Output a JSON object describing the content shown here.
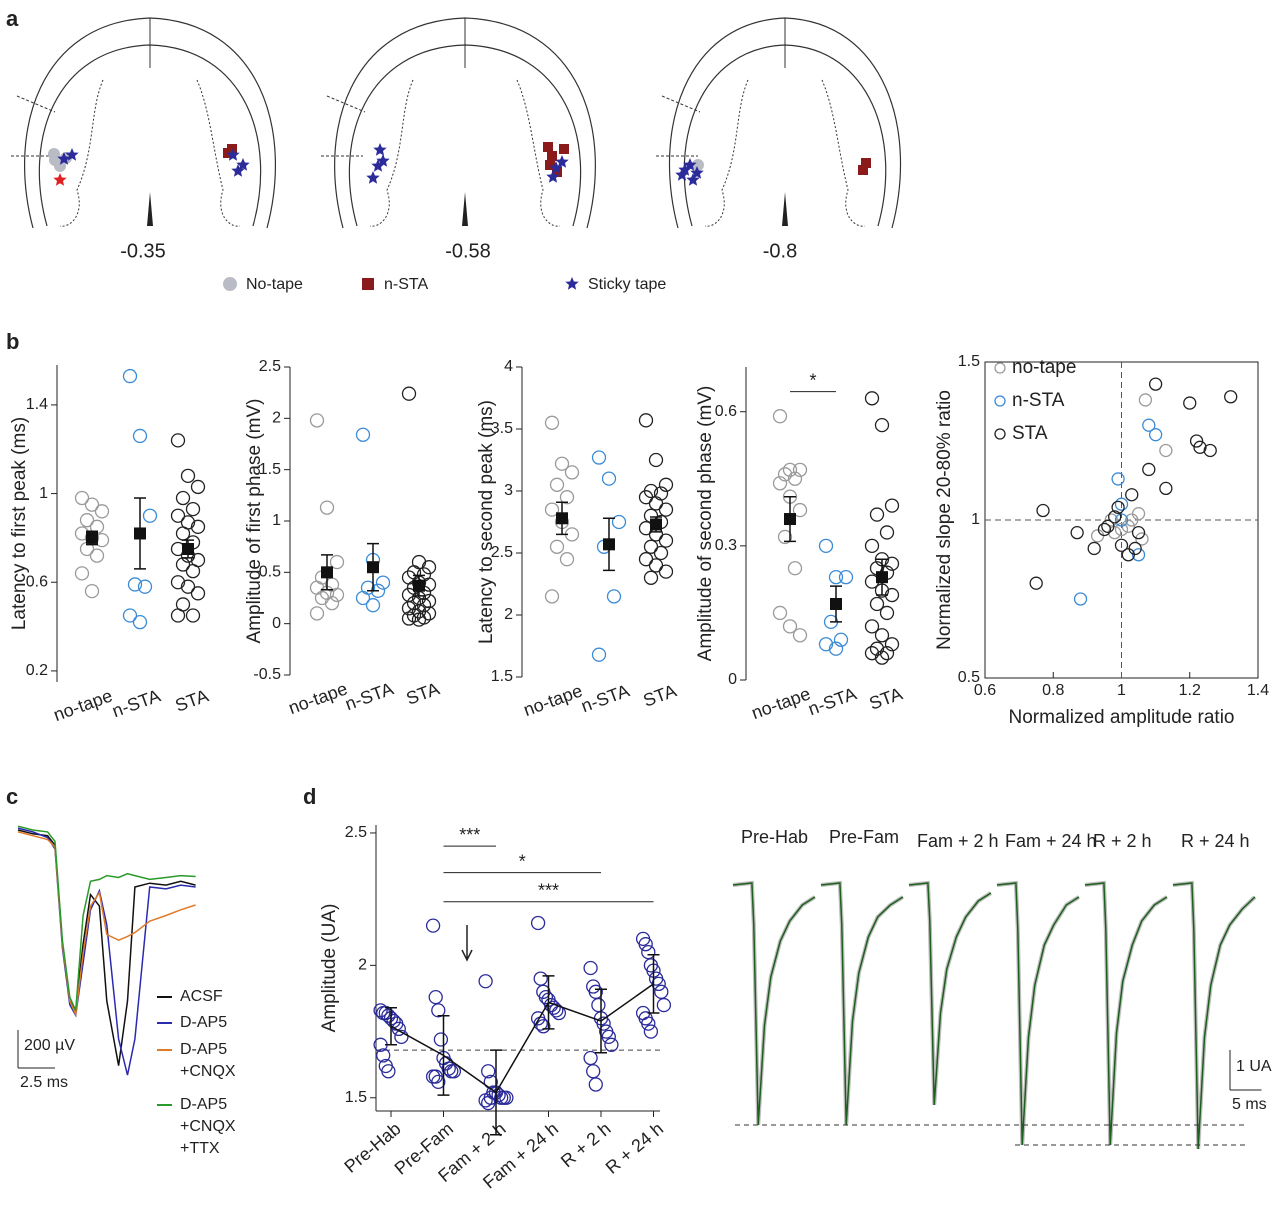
{
  "panel_labels": [
    "a",
    "b",
    "c",
    "d"
  ],
  "sections": {
    "labels": [
      -0.35,
      -0.58,
      -0.8
    ],
    "legend": [
      "No-tape",
      "n-STA",
      "Sticky tape"
    ]
  },
  "chart_data": [
    {
      "type": "strip",
      "ylabel": "Latency to first peak (ms)",
      "categories": [
        "no-tape",
        "n-STA",
        "STA"
      ],
      "colors": [
        "#9a9a9a",
        "#3b8bd6",
        "#222222"
      ],
      "mean_marker": "square",
      "points": [
        [
          0.98,
          0.95,
          0.92,
          0.88,
          0.85,
          0.82,
          0.8,
          0.79,
          0.75,
          0.72,
          0.64,
          0.56
        ],
        [
          1.53,
          1.26,
          0.9,
          0.59,
          0.58,
          0.45,
          0.42
        ],
        [
          1.24,
          1.08,
          1.03,
          0.98,
          0.93,
          0.9,
          0.87,
          0.85,
          0.82,
          0.78,
          0.75,
          0.72,
          0.7,
          0.68,
          0.65,
          0.6,
          0.58,
          0.55,
          0.5,
          0.45,
          0.45
        ]
      ],
      "means": [
        0.8,
        0.82,
        0.75
      ],
      "errors": [
        0.03,
        0.16,
        0.04
      ],
      "ylim": [
        0.15,
        1.58
      ],
      "yticks": [
        0.2,
        0.6,
        1,
        1.4
      ]
    },
    {
      "type": "strip",
      "ylabel": "Amplitude of first phase (mV)",
      "categories": [
        "no-tape",
        "n-STA",
        "STA"
      ],
      "colors": [
        "#9a9a9a",
        "#3b8bd6",
        "#222222"
      ],
      "mean_marker": "square",
      "points": [
        [
          1.98,
          1.13,
          0.6,
          0.45,
          0.38,
          0.35,
          0.3,
          0.28,
          0.25,
          0.2,
          0.1
        ],
        [
          1.84,
          0.62,
          0.4,
          0.35,
          0.32,
          0.25,
          0.18
        ],
        [
          2.24,
          0.6,
          0.55,
          0.5,
          0.48,
          0.45,
          0.4,
          0.38,
          0.35,
          0.3,
          0.28,
          0.25,
          0.22,
          0.2,
          0.18,
          0.15,
          0.12,
          0.1,
          0.08,
          0.06,
          0.05,
          0.04
        ]
      ],
      "means": [
        0.5,
        0.55,
        0.37
      ],
      "errors": [
        0.17,
        0.23,
        0.1
      ],
      "ylim": [
        -0.5,
        2.5
      ],
      "yticks": [
        -0.5,
        0,
        0.5,
        1,
        1.5,
        2,
        2.5
      ]
    },
    {
      "type": "strip",
      "ylabel": "Latency to second peak (ms)",
      "categories": [
        "no-tape",
        "n-STA",
        "STA"
      ],
      "colors": [
        "#9a9a9a",
        "#3b8bd6",
        "#222222"
      ],
      "mean_marker": "square",
      "points": [
        [
          3.55,
          3.22,
          3.15,
          3.05,
          2.95,
          2.85,
          2.75,
          2.65,
          2.55,
          2.45,
          2.15
        ],
        [
          3.27,
          3.1,
          2.75,
          2.55,
          2.15,
          1.68
        ],
        [
          3.57,
          3.25,
          3.05,
          3.0,
          2.98,
          2.95,
          2.9,
          2.85,
          2.8,
          2.75,
          2.7,
          2.65,
          2.6,
          2.55,
          2.5,
          2.45,
          2.4,
          2.35,
          2.3
        ]
      ],
      "means": [
        2.78,
        2.57,
        2.73
      ],
      "errors": [
        0.13,
        0.21,
        0.06
      ],
      "ylim": [
        1.5,
        4
      ],
      "yticks": [
        1.5,
        2,
        2.5,
        3,
        3.5,
        4
      ]
    },
    {
      "type": "strip",
      "ylabel": "Amplitude of second phase (mV)",
      "categories": [
        "no-tape",
        "n-STA",
        "STA"
      ],
      "colors": [
        "#9a9a9a",
        "#3b8bd6",
        "#222222"
      ],
      "mean_marker": "square",
      "points": [
        [
          0.59,
          0.47,
          0.47,
          0.46,
          0.45,
          0.44,
          0.41,
          0.38,
          0.32,
          0.25,
          0.15,
          0.12,
          0.1
        ],
        [
          0.3,
          0.23,
          0.23,
          0.13,
          0.09,
          0.08,
          0.07
        ],
        [
          0.63,
          0.57,
          0.39,
          0.37,
          0.33,
          0.3,
          0.27,
          0.26,
          0.25,
          0.24,
          0.22,
          0.2,
          0.19,
          0.17,
          0.15,
          0.12,
          0.1,
          0.08,
          0.07,
          0.06,
          0.06,
          0.05
        ]
      ],
      "means": [
        0.36,
        0.17,
        0.23
      ],
      "errors": [
        0.05,
        0.04,
        0.04
      ],
      "significance": [
        {
          "from": "no-tape",
          "to": "n-STA",
          "y": 0.645,
          "label": "*"
        }
      ],
      "ylim": [
        0,
        0.7
      ],
      "yticks": [
        0,
        0.3,
        0.6
      ]
    },
    {
      "type": "scatter",
      "xlabel": "Normalized amplitude ratio",
      "ylabel": "Normalized slope 20-80% ratio",
      "xlim": [
        0.6,
        1.4
      ],
      "xticks": [
        0.6,
        0.8,
        1,
        1.2,
        1.4
      ],
      "ylim": [
        0.5,
        1.5
      ],
      "yticks": [
        0.5,
        1,
        1.5
      ],
      "hlines": [
        1
      ],
      "vlines": [
        1
      ],
      "legend": "upper left",
      "series": [
        {
          "name": "no-tape",
          "color": "#9a9a9a",
          "x": [
            1.07,
            1.13,
            1.03,
            1.05,
            1.02,
            0.98,
            0.93,
            1.06,
            1.0,
            0.97
          ],
          "values": [
            1.38,
            1.22,
            1.0,
            1.02,
            0.98,
            0.96,
            0.95,
            0.94,
            0.97,
            1.0
          ]
        },
        {
          "name": "n-STA",
          "color": "#3b8bd6",
          "x": [
            1.08,
            1.1,
            0.99,
            1.0,
            1.05,
            0.88,
            1.0
          ],
          "values": [
            1.3,
            1.27,
            1.13,
            1.05,
            0.89,
            0.75,
            1.0
          ]
        },
        {
          "name": "STA",
          "color": "#222222",
          "x": [
            1.1,
            1.2,
            1.32,
            1.22,
            1.26,
            1.23,
            1.13,
            1.08,
            1.03,
            0.99,
            0.77,
            0.75,
            0.87,
            0.92,
            1.0,
            1.02,
            1.04,
            0.96,
            0.95,
            0.98,
            1.05
          ],
          "values": [
            1.43,
            1.37,
            1.39,
            1.25,
            1.22,
            1.23,
            1.1,
            1.16,
            1.08,
            1.04,
            1.03,
            0.8,
            0.96,
            0.91,
            0.92,
            0.89,
            0.91,
            0.98,
            0.97,
            1.01,
            0.96
          ]
        }
      ]
    },
    {
      "type": "line",
      "x": [
        0,
        1,
        2,
        2.5,
        3,
        3.5,
        3.9,
        4.4,
        4.9,
        5.5,
        6,
        6.8,
        7.4,
        7.9,
        8.9,
        10,
        11,
        12
      ],
      "scalebar_y": {
        "value": 200,
        "label": "200 µV"
      },
      "scalebar_x": {
        "value": 2.5,
        "label": "2.5 ms"
      },
      "series": [
        {
          "name": "ACSF",
          "color": "#111111",
          "values": [
            0,
            -20,
            -30,
            -80,
            -600,
            -900,
            -950,
            -600,
            -340,
            -400,
            -900,
            -1240,
            -900,
            -300,
            -280,
            -290,
            -270,
            -290
          ]
        },
        {
          "name": "D-AP5",
          "color": "#2b2bb0",
          "values": [
            10,
            -10,
            -40,
            -100,
            -620,
            -920,
            -975,
            -700,
            -420,
            -320,
            -500,
            -1100,
            -1290,
            -1100,
            -300,
            -310,
            -290,
            -300
          ]
        },
        {
          "name": "D-AP5 +CNQX",
          "color": "#e07b2a",
          "values": [
            -10,
            -30,
            -50,
            -90,
            -600,
            -900,
            -970,
            -650,
            -400,
            -330,
            -550,
            -580,
            -560,
            -540,
            -480,
            -450,
            -420,
            -395
          ]
        },
        {
          "name": "D-AP5 +CNQX +TTX",
          "color": "#2a9a2a",
          "values": [
            20,
            0,
            -10,
            -60,
            -580,
            -880,
            -950,
            -450,
            -270,
            -260,
            -240,
            -250,
            -230,
            -240,
            -260,
            -250,
            -240,
            -245
          ]
        }
      ]
    },
    {
      "type": "strip",
      "ylabel": "Amplitude (UA)",
      "categories": [
        "Pre-Hab",
        "Pre-Fam",
        "Fam + 2 h",
        "Fam + 24 h",
        "R + 2 h",
        "R + 24 h"
      ],
      "colors": [
        "#2b2b9a",
        "#2b2b9a",
        "#2b2b9a",
        "#2b2b9a",
        "#2b2b9a",
        "#2b2b9a"
      ],
      "mean_marker": "none",
      "connect": true,
      "points": [
        [
          1.83,
          1.82,
          1.82,
          1.81,
          1.8,
          1.79,
          1.78,
          1.76,
          1.73,
          1.7,
          1.66,
          1.62,
          1.6
        ],
        [
          2.15,
          1.88,
          1.83,
          1.72,
          1.65,
          1.63,
          1.61,
          1.6,
          1.6,
          1.58,
          1.58,
          1.56
        ],
        [
          1.94,
          1.6,
          1.56,
          1.52,
          1.52,
          1.51,
          1.5,
          1.5,
          1.5,
          1.49,
          1.48,
          1.5
        ],
        [
          2.16,
          1.95,
          1.9,
          1.88,
          1.87,
          1.85,
          1.84,
          1.83,
          1.82,
          1.8,
          1.78,
          1.77
        ],
        [
          1.99,
          1.92,
          1.9,
          1.85,
          1.8,
          1.78,
          1.75,
          1.73,
          1.7,
          1.65,
          1.6,
          1.55
        ],
        [
          2.1,
          2.08,
          2.05,
          2.0,
          1.98,
          1.95,
          1.93,
          1.9,
          1.85,
          1.82,
          1.8,
          1.78,
          1.75
        ]
      ],
      "means": [
        1.77,
        1.66,
        1.52,
        1.86,
        1.79,
        1.93
      ],
      "errors": [
        0.07,
        0.15,
        0.16,
        0.1,
        0.12,
        0.11
      ],
      "hlines": [
        1.68
      ],
      "significance": [
        {
          "from": "Pre-Fam",
          "to": "Fam + 2 h",
          "y": 2.45,
          "label": "***"
        },
        {
          "from": "Pre-Fam",
          "to": "R + 2 h",
          "y": 2.35,
          "label": "*"
        },
        {
          "from": "Pre-Fam",
          "to": "R + 24 h",
          "y": 2.24,
          "label": "***"
        }
      ],
      "ylim": [
        1.45,
        2.53
      ],
      "yticks": [
        1.5,
        2,
        2.5
      ]
    },
    {
      "type": "line",
      "x": [
        0,
        3,
        3.3,
        4,
        5,
        6,
        7.5,
        9,
        11,
        13
      ],
      "hlines": [
        -6,
        -6.5
      ],
      "scalebar_y": {
        "value": 1,
        "label": "1 UA"
      },
      "scalebar_x": {
        "value": 5,
        "label": "5 ms"
      },
      "series": [
        {
          "name": "Pre-Hab",
          "color": "#1e5e1e",
          "values": [
            0,
            0.05,
            -1,
            -6,
            -3.5,
            -2.3,
            -1.4,
            -0.9,
            -0.5,
            -0.3
          ]
        },
        {
          "name": "Pre-Fam",
          "color": "#1e5e1e",
          "values": [
            0,
            0.05,
            -1,
            -6,
            -3.4,
            -2.2,
            -1.3,
            -0.8,
            -0.5,
            -0.3
          ]
        },
        {
          "name": "Fam + 2 h",
          "color": "#1e5e1e",
          "values": [
            0,
            0.05,
            -0.9,
            -5.5,
            -3.2,
            -2.1,
            -1.3,
            -0.8,
            -0.4,
            -0.2
          ]
        },
        {
          "name": "Fam + 24 h",
          "color": "#1e5e1e",
          "values": [
            0,
            0.05,
            -1.1,
            -6.5,
            -3.8,
            -2.5,
            -1.5,
            -1,
            -0.5,
            -0.3
          ]
        },
        {
          "name": "R + 2 h",
          "color": "#1e5e1e",
          "values": [
            0,
            0.05,
            -1.1,
            -6.5,
            -3.7,
            -2.4,
            -1.5,
            -0.9,
            -0.5,
            -0.3
          ]
        },
        {
          "name": "R + 24 h",
          "color": "#1e5e1e",
          "values": [
            0,
            0.05,
            -1.1,
            -6.6,
            -3.8,
            -2.5,
            -1.5,
            -1,
            -0.6,
            -0.3
          ]
        }
      ]
    }
  ]
}
